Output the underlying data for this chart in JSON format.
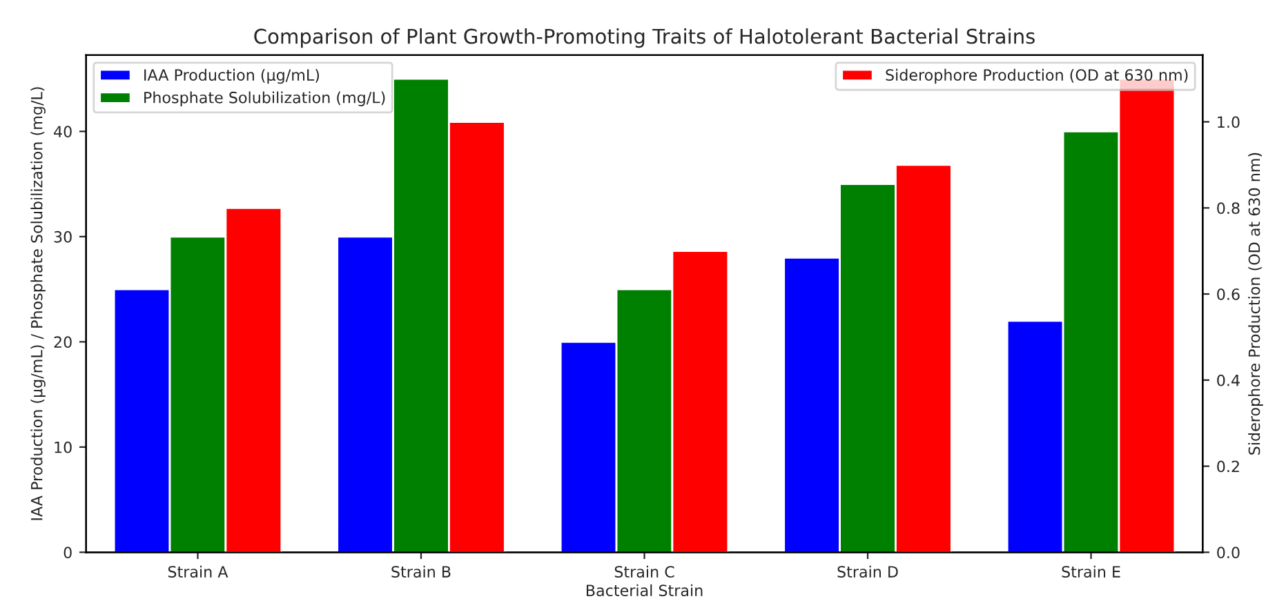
{
  "chart_data": {
    "type": "bar",
    "title": "Comparison of Plant Growth-Promoting Traits of Halotolerant Bacterial Strains",
    "xlabel": "Bacterial Strain",
    "ylabel": "IAA Production (µg/mL) / Phosphate Solubilization (mg/L)",
    "y2label": "Siderophore Production (OD at 630 nm)",
    "categories": [
      "Strain A",
      "Strain B",
      "Strain C",
      "Strain D",
      "Strain E"
    ],
    "series": [
      {
        "name": "IAA Production (µg/mL)",
        "color": "#0000ff",
        "values": [
          25,
          30,
          20,
          28,
          22
        ]
      },
      {
        "name": "Phosphate Solubilization (mg/L)",
        "color": "#008000",
        "values": [
          30,
          45,
          25,
          35,
          40
        ]
      },
      {
        "name": "Siderophore Production (OD at 630 nm)",
        "color": "#ff0000",
        "values": [
          0.8,
          1.0,
          0.7,
          0.9,
          1.1
        ],
        "axis": "y2"
      }
    ],
    "ylim": [
      0,
      47.25
    ],
    "yticks": [
      0,
      10,
      20,
      30,
      40
    ],
    "y2lim": [
      0,
      1.155
    ],
    "y2ticks": [
      {
        "value": 0,
        "label": "0.0"
      },
      {
        "value": 0.2,
        "label": "0.2"
      },
      {
        "value": 0.4,
        "label": "0.4"
      },
      {
        "value": 0.6,
        "label": "0.6"
      },
      {
        "value": 0.8,
        "label": "0.8"
      },
      {
        "value": 1.0,
        "label": "1.0"
      }
    ],
    "legend": "top left",
    "grid": false
  }
}
